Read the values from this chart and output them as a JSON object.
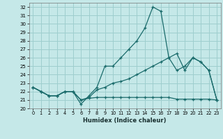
{
  "xlabel": "Humidex (Indice chaleur)",
  "bg_color": "#c5e8e8",
  "grid_color": "#9ecece",
  "line_color": "#1a6b6b",
  "xlim": [
    -0.5,
    23.5
  ],
  "ylim": [
    20.0,
    32.5
  ],
  "yticks": [
    20,
    21,
    22,
    23,
    24,
    25,
    26,
    27,
    28,
    29,
    30,
    31,
    32
  ],
  "xticks": [
    0,
    1,
    2,
    3,
    4,
    5,
    6,
    7,
    8,
    9,
    10,
    11,
    12,
    13,
    14,
    15,
    16,
    17,
    18,
    19,
    20,
    21,
    22,
    23
  ],
  "line1_x": [
    0,
    1,
    2,
    3,
    4,
    5,
    6,
    7,
    8,
    9,
    10,
    11,
    12,
    13,
    14,
    15,
    16,
    17,
    18,
    19,
    20,
    21,
    22,
    23
  ],
  "line1_y": [
    22.5,
    22.0,
    21.5,
    21.5,
    22.0,
    22.0,
    20.5,
    21.5,
    22.5,
    25.0,
    25.0,
    26.0,
    27.0,
    28.0,
    29.5,
    32.0,
    31.5,
    26.0,
    26.5,
    24.5,
    26.0,
    25.5,
    24.5,
    21.0
  ],
  "line2_x": [
    0,
    1,
    2,
    3,
    4,
    5,
    6,
    7,
    8,
    9,
    10,
    11,
    12,
    13,
    14,
    15,
    16,
    17,
    18,
    19,
    20,
    21,
    22,
    23
  ],
  "line2_y": [
    22.5,
    22.0,
    21.5,
    21.5,
    22.0,
    22.0,
    21.0,
    21.3,
    22.2,
    22.5,
    23.0,
    23.2,
    23.5,
    24.0,
    24.5,
    25.0,
    25.5,
    26.0,
    24.5,
    25.0,
    26.0,
    25.5,
    24.5,
    21.0
  ],
  "line3_x": [
    0,
    1,
    2,
    3,
    4,
    5,
    6,
    7,
    8,
    9,
    10,
    11,
    12,
    13,
    14,
    15,
    16,
    17,
    18,
    19,
    20,
    21,
    22,
    23
  ],
  "line3_y": [
    22.5,
    22.0,
    21.5,
    21.5,
    22.0,
    22.0,
    21.0,
    21.2,
    21.3,
    21.3,
    21.3,
    21.3,
    21.3,
    21.3,
    21.3,
    21.3,
    21.3,
    21.3,
    21.1,
    21.1,
    21.1,
    21.1,
    21.1,
    21.0
  ]
}
